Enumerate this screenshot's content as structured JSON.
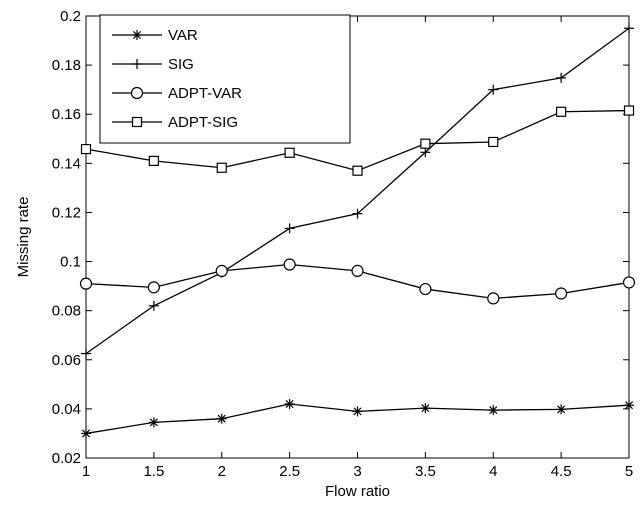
{
  "chart_data": {
    "type": "line",
    "title": "",
    "xlabel": "Flow ratio",
    "ylabel": "Missing rate",
    "xlim": [
      1,
      5
    ],
    "ylim": [
      0.02,
      0.2
    ],
    "xticks": [
      1,
      1.5,
      2,
      2.5,
      3,
      3.5,
      4,
      4.5,
      5
    ],
    "yticks": [
      0.02,
      0.04,
      0.06,
      0.08,
      0.1,
      0.12,
      0.14,
      0.16,
      0.18,
      0.2
    ],
    "xtick_labels": [
      "1",
      "1.5",
      "2",
      "2.5",
      "3",
      "3.5",
      "4",
      "4.5",
      "5"
    ],
    "ytick_labels": [
      "0.02",
      "0.04",
      "0.06",
      "0.08",
      "0.1",
      "0.12",
      "0.14",
      "0.16",
      "0.18",
      "0.2"
    ],
    "grid": false,
    "legend_position": "top-left",
    "x": [
      1,
      1.5,
      2,
      2.5,
      3,
      3.5,
      4,
      4.5,
      5
    ],
    "series": [
      {
        "name": "VAR",
        "marker": "star",
        "values": [
          0.03,
          0.0345,
          0.036,
          0.042,
          0.039,
          0.0403,
          0.0395,
          0.0398,
          0.0415
        ]
      },
      {
        "name": "SIG",
        "marker": "plus",
        "values": [
          0.0625,
          0.082,
          0.0955,
          0.1135,
          0.1195,
          0.1445,
          0.17,
          0.1748,
          0.195
        ]
      },
      {
        "name": "ADPT-VAR",
        "marker": "circle",
        "values": [
          0.091,
          0.0895,
          0.0962,
          0.0988,
          0.0962,
          0.0888,
          0.085,
          0.087,
          0.0915
        ]
      },
      {
        "name": "ADPT-SIG",
        "marker": "square",
        "values": [
          0.1458,
          0.141,
          0.1382,
          0.1443,
          0.137,
          0.148,
          0.1487,
          0.161,
          0.1615
        ]
      }
    ]
  }
}
